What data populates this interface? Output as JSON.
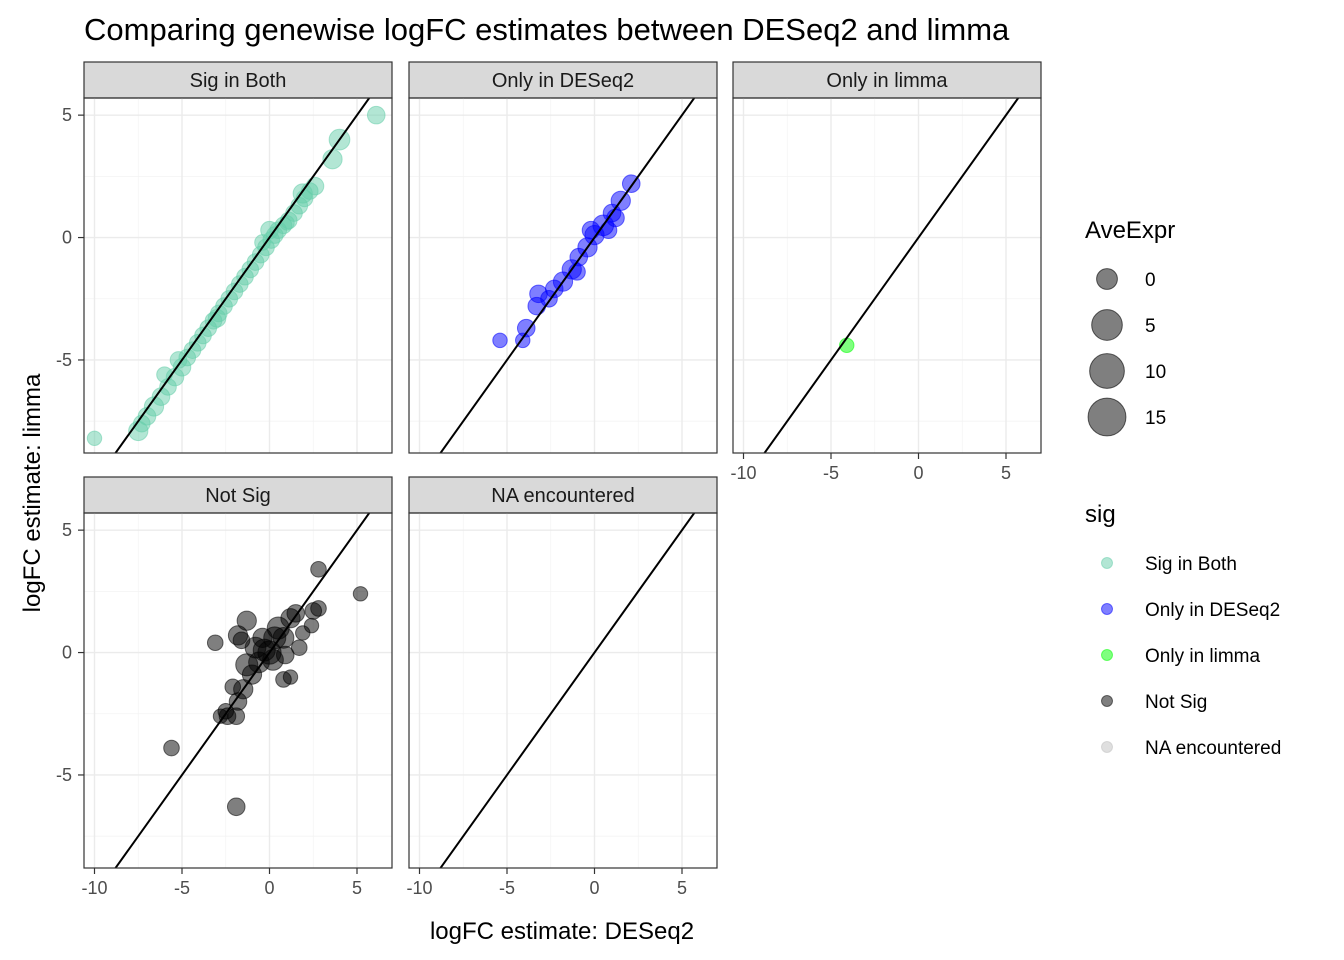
{
  "chart_data": {
    "type": "scatter",
    "title": "Comparing genewise logFC estimates between DESeq2 and limma",
    "xlabel": "logFC estimate: DESeq2",
    "ylabel": "logFC estimate: limma",
    "xlim": [
      -10.6,
      7
    ],
    "ylim": [
      -8.8,
      5.7
    ],
    "x_ticks": [
      -10,
      -5,
      0,
      5
    ],
    "y_ticks": [
      -5,
      0,
      5
    ],
    "x_tick_labels": [
      "-10",
      "-5",
      "0",
      "5"
    ],
    "y_tick_labels": [
      "-5",
      "0",
      "5"
    ],
    "grid": true,
    "reference_line": {
      "slope": 1,
      "intercept": 0
    },
    "point_alpha": 0.5,
    "facets": [
      {
        "label": "Sig in Both",
        "color": "#66cdaa",
        "points": [
          [
            6.1,
            5.0,
            6
          ],
          [
            4.0,
            4.0,
            10
          ],
          [
            3.6,
            3.2,
            8
          ],
          [
            2.6,
            2.1,
            6
          ],
          [
            2.3,
            1.9,
            5
          ],
          [
            2.0,
            1.6,
            5
          ],
          [
            1.7,
            1.3,
            5
          ],
          [
            1.4,
            1.0,
            5
          ],
          [
            1.1,
            0.7,
            5
          ],
          [
            0.8,
            0.5,
            5
          ],
          [
            0.5,
            0.3,
            5
          ],
          [
            0.3,
            0.1,
            5
          ],
          [
            0.1,
            -0.1,
            5
          ],
          [
            -0.2,
            -0.4,
            5
          ],
          [
            -0.5,
            -0.7,
            5
          ],
          [
            -0.8,
            -1.0,
            5
          ],
          [
            -1.1,
            -1.3,
            5
          ],
          [
            -1.4,
            -1.6,
            5
          ],
          [
            -1.7,
            -1.9,
            5
          ],
          [
            -2.0,
            -2.2,
            5
          ],
          [
            -2.3,
            -2.5,
            5
          ],
          [
            -2.6,
            -2.8,
            5
          ],
          [
            -2.9,
            -3.1,
            5
          ],
          [
            -3.2,
            -3.4,
            5
          ],
          [
            -3.5,
            -3.7,
            5
          ],
          [
            -3.8,
            -4.0,
            5
          ],
          [
            -4.1,
            -4.3,
            5
          ],
          [
            -4.4,
            -4.6,
            5
          ],
          [
            -4.7,
            -4.9,
            5
          ],
          [
            -5.0,
            -5.3,
            6
          ],
          [
            -5.4,
            -5.7,
            6
          ],
          [
            -5.8,
            -6.1,
            5
          ],
          [
            -6.2,
            -6.5,
            6
          ],
          [
            -6.6,
            -6.9,
            8
          ],
          [
            -7.0,
            -7.3,
            6
          ],
          [
            -7.3,
            -7.6,
            5
          ],
          [
            -7.5,
            -7.9,
            8
          ],
          [
            -10.0,
            -8.2,
            3
          ],
          [
            1.0,
            0.6,
            3
          ],
          [
            0.0,
            0.3,
            6
          ],
          [
            -0.4,
            -0.2,
            4
          ],
          [
            1.9,
            1.8,
            8
          ],
          [
            -3.0,
            -3.3,
            6
          ],
          [
            -5.2,
            -5.0,
            5
          ],
          [
            -6.0,
            -5.6,
            4
          ]
        ]
      },
      {
        "label": "Only in DESeq2",
        "color": "#0000ff",
        "points": [
          [
            2.1,
            2.2,
            6
          ],
          [
            1.5,
            1.5,
            8
          ],
          [
            1.0,
            1.0,
            6
          ],
          [
            0.5,
            0.5,
            10
          ],
          [
            0.0,
            0.1,
            8
          ],
          [
            -0.4,
            -0.4,
            8
          ],
          [
            -0.9,
            -0.8,
            6
          ],
          [
            -1.3,
            -1.3,
            8
          ],
          [
            -1.8,
            -1.8,
            8
          ],
          [
            -2.3,
            -2.1,
            6
          ],
          [
            -3.2,
            -2.3,
            6
          ],
          [
            -3.3,
            -2.8,
            6
          ],
          [
            -3.9,
            -3.7,
            6
          ],
          [
            -5.4,
            -4.2,
            3
          ],
          [
            -4.1,
            -4.2,
            3
          ],
          [
            1.2,
            0.8,
            6
          ],
          [
            -0.2,
            0.3,
            6
          ],
          [
            0.8,
            0.3,
            5
          ],
          [
            -1.0,
            -1.4,
            5
          ],
          [
            -2.6,
            -2.5,
            5
          ]
        ]
      },
      {
        "label": "Only in limma",
        "color": "#00ff00",
        "points": [
          [
            -4.1,
            -4.4,
            3
          ]
        ]
      },
      {
        "label": "Not Sig",
        "color": "#000000",
        "points": [
          [
            0.5,
            1.0,
            12
          ],
          [
            -0.3,
            0.1,
            12
          ],
          [
            0.8,
            0.6,
            10
          ],
          [
            -0.6,
            -0.4,
            10
          ],
          [
            1.2,
            1.4,
            8
          ],
          [
            -1.0,
            -0.9,
            8
          ],
          [
            0.2,
            -0.3,
            10
          ],
          [
            -1.5,
            -1.5,
            8
          ],
          [
            1.5,
            1.6,
            6
          ],
          [
            -0.4,
            0.6,
            8
          ],
          [
            0.9,
            -0.1,
            6
          ],
          [
            -1.6,
            0.5,
            5
          ],
          [
            -1.8,
            -2.0,
            6
          ],
          [
            -1.9,
            -2.6,
            5
          ],
          [
            -2.4,
            -2.6,
            5
          ],
          [
            -2.5,
            -2.4,
            4
          ],
          [
            -5.6,
            -3.9,
            4
          ],
          [
            -1.9,
            -6.3,
            6
          ],
          [
            -3.1,
            0.4,
            4
          ],
          [
            -1.3,
            -0.5,
            12
          ],
          [
            -1.3,
            1.3,
            8
          ],
          [
            -1.8,
            0.7,
            8
          ],
          [
            2.8,
            3.4,
            4
          ],
          [
            5.2,
            2.4,
            3
          ],
          [
            2.8,
            1.8,
            4
          ],
          [
            2.5,
            1.7,
            5
          ],
          [
            2.4,
            1.1,
            3
          ],
          [
            1.9,
            0.8,
            3
          ],
          [
            1.7,
            0.2,
            4
          ],
          [
            1.2,
            -1.0,
            3
          ],
          [
            0.8,
            -1.1,
            4
          ],
          [
            -2.1,
            -1.4,
            4
          ],
          [
            -2.8,
            -2.6,
            3
          ],
          [
            0.0,
            0.0,
            14
          ],
          [
            0.3,
            0.6,
            12
          ],
          [
            -0.8,
            0.2,
            10
          ]
        ]
      },
      {
        "label": "NA encountered",
        "color": "#bfbfbf",
        "points": []
      }
    ],
    "legends": [
      {
        "title": "AveExpr",
        "type": "size",
        "labels": [
          "0",
          "5",
          "10",
          "15"
        ],
        "values": [
          0,
          5,
          10,
          15
        ]
      },
      {
        "title": "sig",
        "type": "color",
        "labels": [
          "Sig in Both",
          "Only in DESeq2",
          "Only in limma",
          "Not Sig",
          "NA encountered"
        ],
        "colors": [
          "#66cdaa",
          "#0000ff",
          "#00ff00",
          "#000000",
          "#bfbfbf"
        ]
      }
    ],
    "legend_position": "right"
  }
}
